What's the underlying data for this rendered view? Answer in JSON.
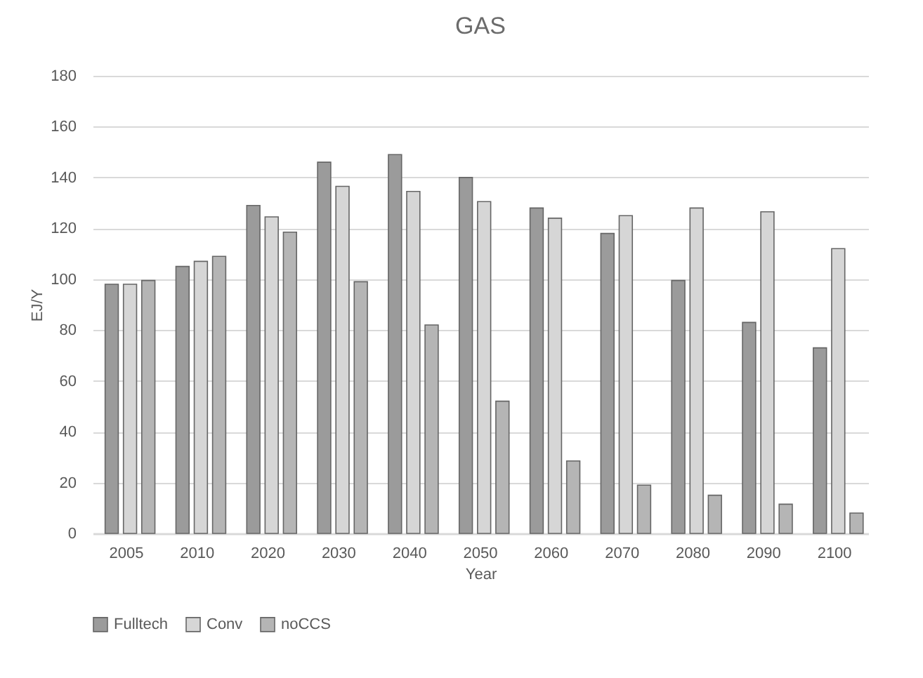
{
  "chart_data": {
    "type": "bar",
    "title": "GAS",
    "xlabel": "Year",
    "ylabel": "EJ/Y",
    "categories": [
      "2005",
      "2010",
      "2020",
      "2030",
      "2040",
      "2050",
      "2060",
      "2070",
      "2080",
      "2090",
      "2100"
    ],
    "series": [
      {
        "name": "Fulltech",
        "color": "#9b9b9b",
        "values": [
          98,
          105,
          129,
          146,
          149,
          140,
          128,
          118,
          99.5,
          83,
          73
        ]
      },
      {
        "name": "Conv",
        "color": "#d6d6d6",
        "values": [
          98,
          107,
          124.5,
          136.5,
          134.5,
          130.5,
          124,
          125,
          128,
          126.5,
          112
        ]
      },
      {
        "name": "noCCS",
        "color": "#b5b5b5",
        "values": [
          99.5,
          109,
          118.5,
          99,
          82,
          52,
          28.5,
          19,
          15,
          11.5,
          8
        ]
      }
    ],
    "ylim": [
      0,
      180
    ],
    "yticks": [
      0,
      20,
      40,
      60,
      80,
      100,
      120,
      140,
      160,
      180
    ],
    "grid": "y",
    "legend": "bottom"
  }
}
